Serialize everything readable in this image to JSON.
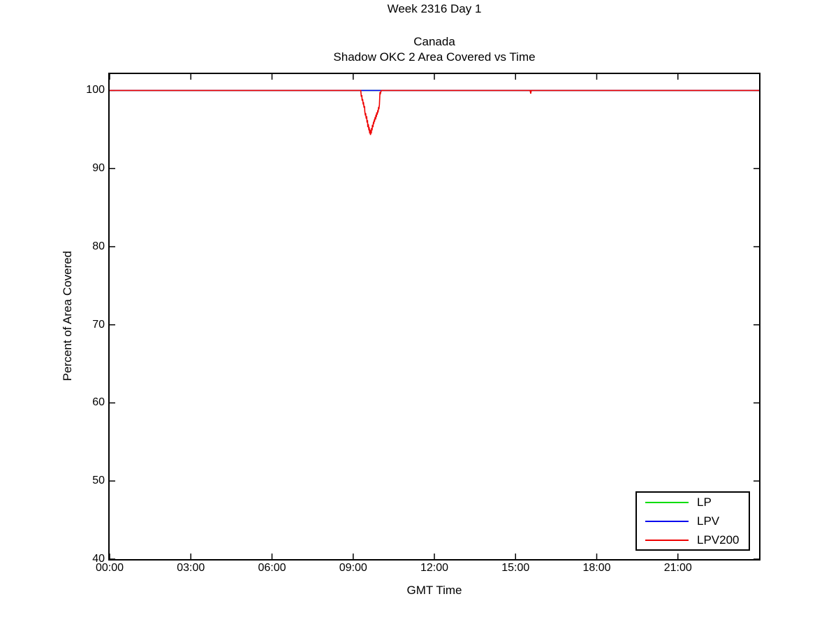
{
  "chart_data": {
    "type": "line",
    "title": "Week 2316 Day 1",
    "subtitle1": "Canada",
    "subtitle2": "Shadow OKC 2 Area Covered vs Time",
    "xlabel": "GMT Time",
    "ylabel": "Percent of Area Covered",
    "xlim": [
      0,
      24
    ],
    "ylim": [
      40,
      102.1
    ],
    "grid": false,
    "legend_position": "bottom-right",
    "axis_color": "#000000",
    "xticks": {
      "values": [
        0,
        3,
        6,
        9,
        12,
        15,
        18,
        21
      ],
      "labels": [
        "00:00",
        "03:00",
        "06:00",
        "09:00",
        "12:00",
        "15:00",
        "18:00",
        "21:00"
      ]
    },
    "yticks": {
      "values": [
        40,
        50,
        60,
        70,
        80,
        90,
        100
      ],
      "labels": [
        "40",
        "50",
        "60",
        "70",
        "80",
        "90",
        "100"
      ]
    },
    "series": [
      {
        "name": "LP",
        "color": "#00dd00",
        "points": [
          [
            0,
            100
          ],
          [
            24,
            100
          ]
        ]
      },
      {
        "name": "LPV",
        "color": "#0000ee",
        "points": [
          [
            0,
            100
          ],
          [
            24,
            100
          ]
        ]
      },
      {
        "name": "LPV200",
        "color": "#ee0000",
        "points": [
          [
            0,
            100
          ],
          [
            9.28,
            100
          ],
          [
            9.3,
            99.2
          ],
          [
            9.32,
            99.4
          ],
          [
            9.33,
            98.7
          ],
          [
            9.35,
            98.9
          ],
          [
            9.37,
            98.2
          ],
          [
            9.38,
            98.5
          ],
          [
            9.4,
            97.8
          ],
          [
            9.42,
            98.0
          ],
          [
            9.43,
            97.3
          ],
          [
            9.45,
            96.8
          ],
          [
            9.46,
            97.1
          ],
          [
            9.48,
            96.4
          ],
          [
            9.5,
            96.7
          ],
          [
            9.51,
            95.9
          ],
          [
            9.53,
            96.2
          ],
          [
            9.54,
            95.3
          ],
          [
            9.56,
            95.7
          ],
          [
            9.58,
            94.9
          ],
          [
            9.59,
            95.3
          ],
          [
            9.61,
            94.5
          ],
          [
            9.62,
            95.0
          ],
          [
            9.64,
            94.3
          ],
          [
            9.65,
            94.9
          ],
          [
            9.67,
            94.5
          ],
          [
            9.68,
            95.2
          ],
          [
            9.7,
            94.9
          ],
          [
            9.71,
            95.6
          ],
          [
            9.73,
            95.3
          ],
          [
            9.75,
            96.0
          ],
          [
            9.76,
            95.7
          ],
          [
            9.78,
            96.3
          ],
          [
            9.79,
            96.0
          ],
          [
            9.81,
            96.6
          ],
          [
            9.83,
            96.3
          ],
          [
            9.84,
            96.9
          ],
          [
            9.86,
            96.6
          ],
          [
            9.87,
            97.2
          ],
          [
            9.89,
            96.9
          ],
          [
            9.91,
            97.5
          ],
          [
            9.92,
            97.2
          ],
          [
            9.94,
            97.9
          ],
          [
            9.95,
            97.6
          ],
          [
            9.97,
            98.2
          ],
          [
            9.99,
            99.8
          ],
          [
            10.0,
            99.5
          ],
          [
            10.02,
            99.8
          ],
          [
            10.04,
            100
          ],
          [
            15.54,
            100
          ],
          [
            15.56,
            99.6
          ],
          [
            15.58,
            100
          ],
          [
            24,
            100
          ]
        ]
      }
    ]
  }
}
